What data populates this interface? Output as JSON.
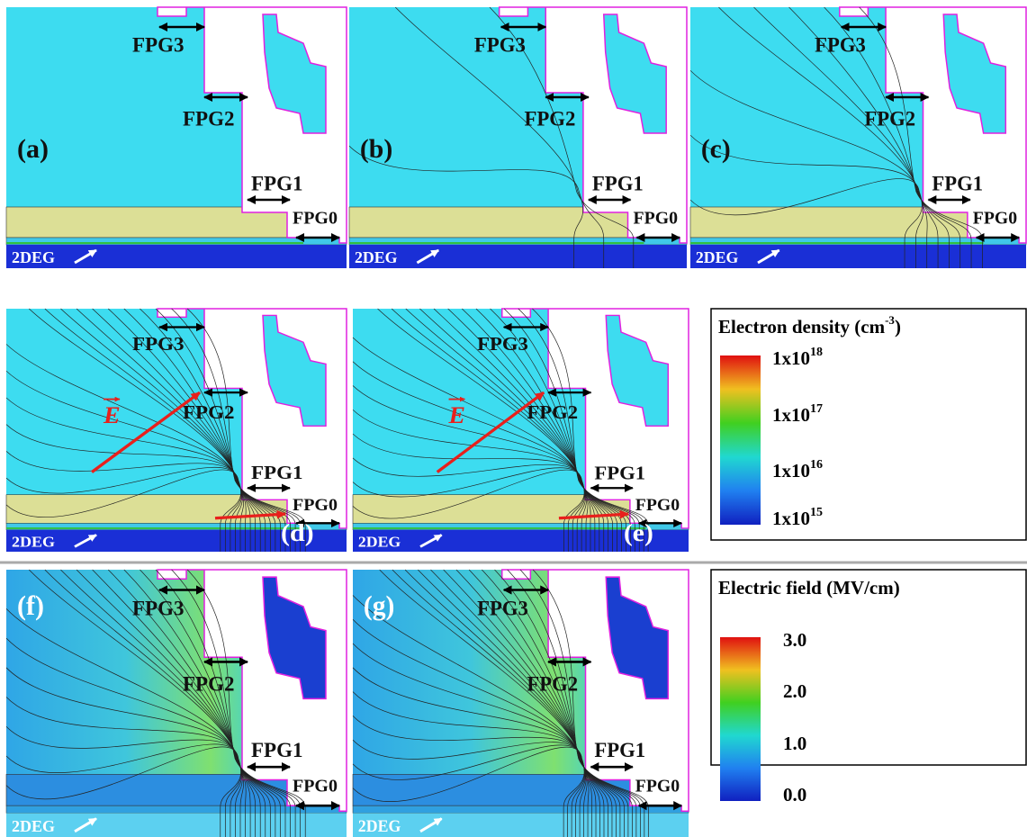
{
  "panels": [
    {
      "label": "(a)",
      "fpg": [
        "FPG3",
        "FPG2",
        "FPG1",
        "FPG0"
      ],
      "channel": "2DEG"
    },
    {
      "label": "(b)",
      "fpg": [
        "FPG3",
        "FPG2",
        "FPG1",
        "FPG0"
      ],
      "channel": "2DEG"
    },
    {
      "label": "(c)",
      "fpg": [
        "FPG3",
        "FPG2",
        "FPG1",
        "FPG0"
      ],
      "channel": "2DEG"
    },
    {
      "label": "(d)",
      "fpg": [
        "FPG3",
        "FPG2",
        "FPG1",
        "FPG0"
      ],
      "channel": "2DEG",
      "field_vector": "E"
    },
    {
      "label": "(e)",
      "fpg": [
        "FPG3",
        "FPG2",
        "FPG1",
        "FPG0"
      ],
      "channel": "2DEG",
      "field_vector": "E"
    },
    {
      "label": "(f)",
      "fpg": [
        "FPG3",
        "FPG2",
        "FPG1",
        "FPG0"
      ],
      "channel": "2DEG"
    },
    {
      "label": "(g)",
      "fpg": [
        "FPG3",
        "FPG2",
        "FPG1",
        "FPG0"
      ],
      "channel": "2DEG"
    }
  ],
  "legends": [
    {
      "title": "Electron density (cm",
      "title_sup": "-3",
      "title_end": ")",
      "ticks": [
        {
          "base": "1x10",
          "exp": "18"
        },
        {
          "base": "1x10",
          "exp": "17"
        },
        {
          "base": "1x10",
          "exp": "16"
        },
        {
          "base": "1x10",
          "exp": "15"
        }
      ]
    },
    {
      "title": "Electric field (MV/cm)",
      "ticks": [
        "3.0",
        "2.0",
        "1.0",
        "0.0"
      ]
    }
  ]
}
